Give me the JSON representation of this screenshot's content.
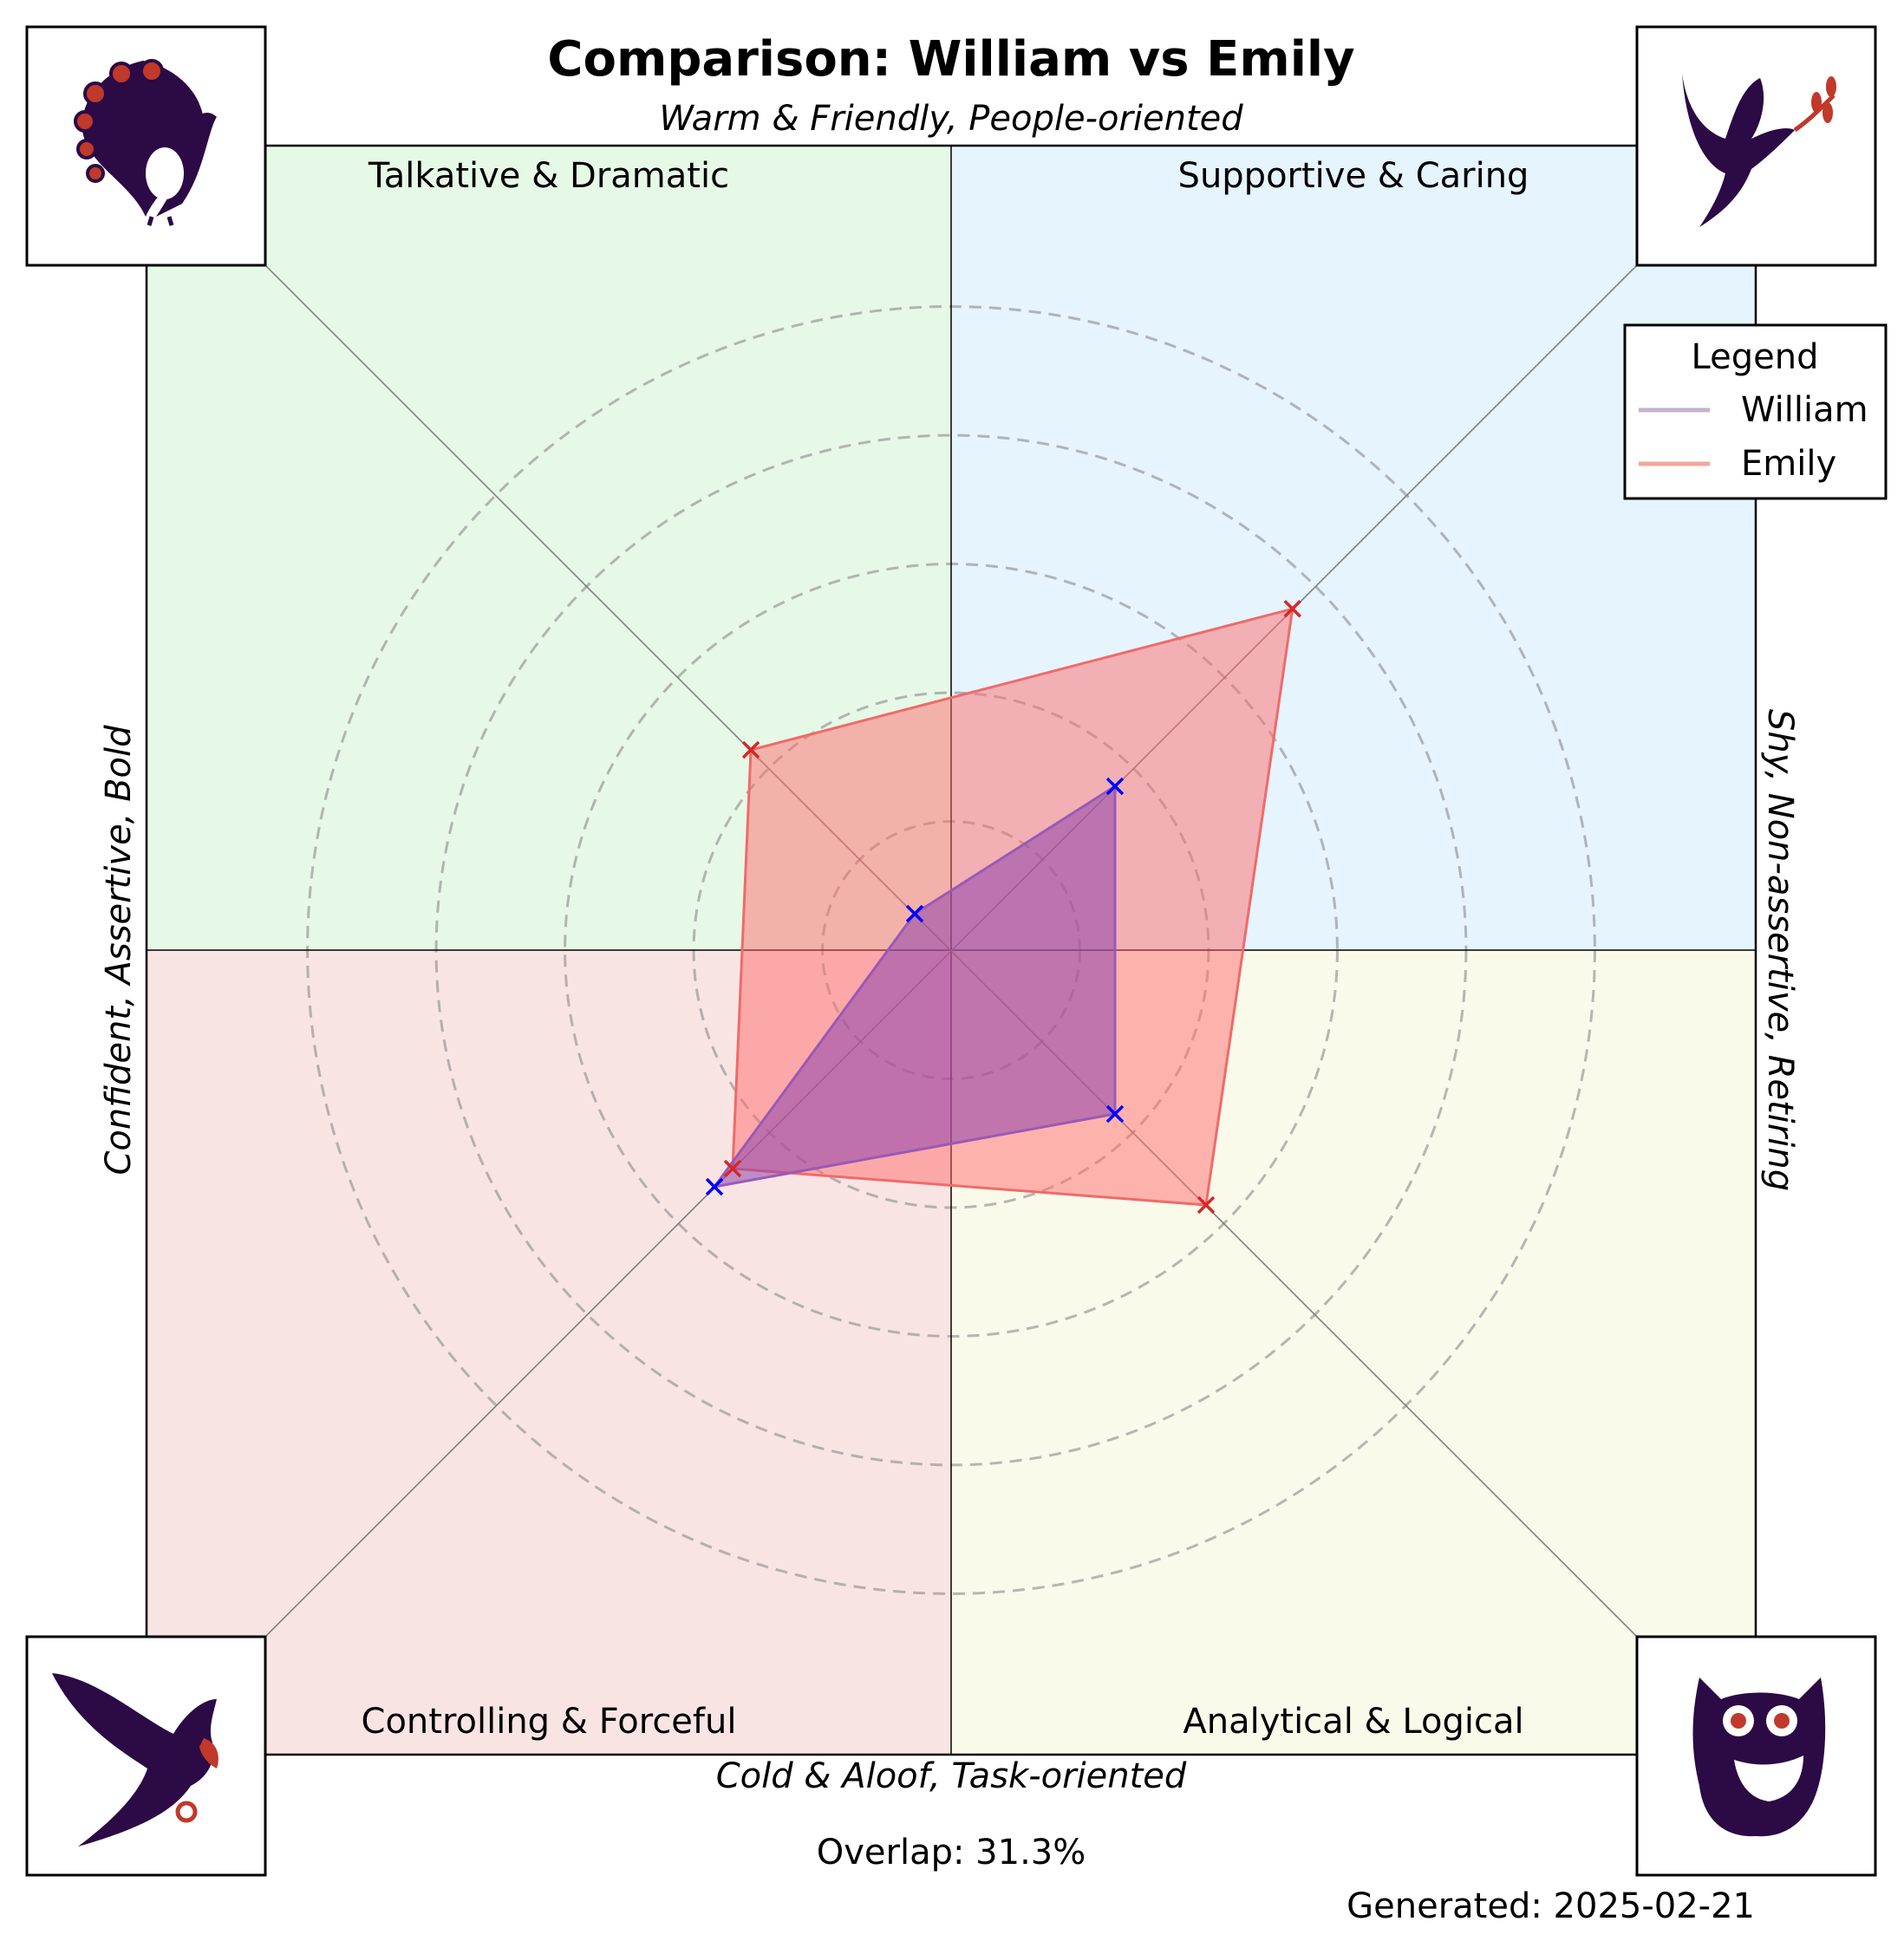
{
  "chart_data": {
    "type": "radar",
    "title": "Comparison: William vs Emily",
    "axes": {
      "top": "Warm & Friendly, People-oriented",
      "bottom": "Cold & Aloof, Task-oriented",
      "left": "Confident, Assertive, Bold",
      "right": "Shy, Non-assertive, Retiring"
    },
    "quadrants": [
      {
        "key": "top_left",
        "label": "Talkative & Dramatic",
        "color": "#e6f8e6",
        "icon": "peacock-icon"
      },
      {
        "key": "top_right",
        "label": "Supportive & Caring",
        "color": "#e5f4fd",
        "icon": "dove-icon"
      },
      {
        "key": "bottom_left",
        "label": "Controlling & Forceful",
        "color": "#f9e4e4",
        "icon": "eagle-icon"
      },
      {
        "key": "bottom_right",
        "label": "Analytical & Logical",
        "color": "#fafaea",
        "icon": "owl-icon"
      }
    ],
    "rlim": [
      0,
      5
    ],
    "rings": [
      1,
      2,
      3,
      4,
      5
    ],
    "dimension_order": [
      "Supportive & Caring",
      "Talkative & Dramatic",
      "Controlling & Forceful",
      "Analytical & Logical"
    ],
    "series": [
      {
        "name": "William",
        "values": [
          1.8,
          0.4,
          2.6,
          1.8
        ],
        "line_color": "#c3b4cc",
        "fill_color": "#8e44ad",
        "marker_color": "#0000ff"
      },
      {
        "name": "Emily",
        "values": [
          3.75,
          2.2,
          2.4,
          2.8
        ],
        "line_color": "#f4a69a",
        "fill_color": "#ff6b6b",
        "marker_color": "#d62728"
      }
    ],
    "legend": {
      "title": "Legend",
      "position": "top-right"
    },
    "grid": true
  },
  "footer": {
    "overlap": "Overlap: 31.3%",
    "generated": "Generated: 2025-02-21"
  }
}
